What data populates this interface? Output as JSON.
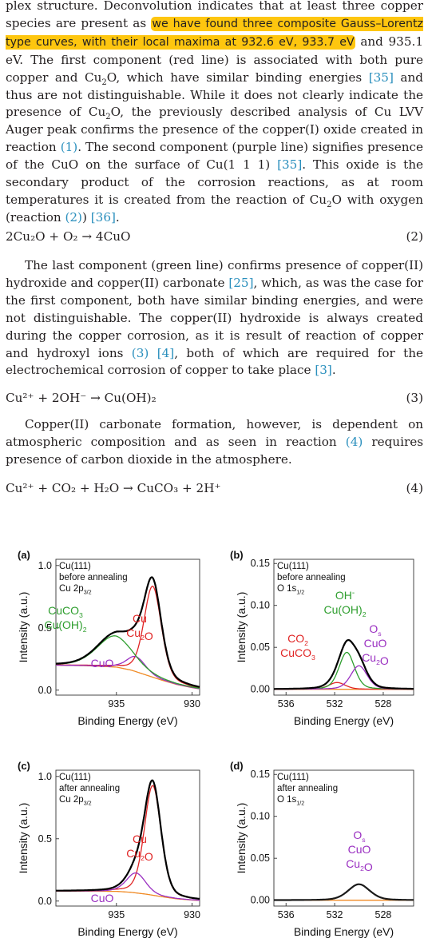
{
  "text": {
    "p1": [
      {
        "t": "plex structure. Deconvolution indicates that at least three copper species are present as "
      },
      {
        "t": "we have found three composite Gauss–Lorentz type curves, with their local maxima at 932.6 eV, 933.7 eV",
        "hl": true
      },
      {
        "t": " and 935.1 eV. The first component (red line) is associated with "
      },
      {
        "t": "both pure copper and Cu"
      },
      {
        "t": "2",
        "sub": true
      },
      {
        "t": "O, which"
      },
      {
        "t": " have similar binding energies "
      },
      {
        "t": "[35]",
        "ref": true
      },
      {
        "t": " and thus are not distinguishable. While it does not clearly indicate the presence of Cu"
      },
      {
        "t": "2",
        "sub": true
      },
      {
        "t": "O, the previously described analysis of Cu LVV Auger peak confirms the presence of the copper(I) oxide created in reaction "
      },
      {
        "t": "(1)",
        "ref": true
      },
      {
        "t": ". The second component (purple line) signifies presence of the CuO on the surface of Cu(1 1 1) "
      },
      {
        "t": "[35]",
        "ref": true
      },
      {
        "t": ". This oxide is the secondary product of the corrosion reactions, as at room temperatures it is created from the reaction of Cu"
      },
      {
        "t": "2",
        "sub": true
      },
      {
        "t": "O with oxygen (reaction "
      },
      {
        "t": "(2)",
        "ref": true
      },
      {
        "t": ") "
      },
      {
        "t": "[36]",
        "ref": true
      },
      {
        "t": "."
      }
    ],
    "eq2": {
      "formula": "2Cu₂O + O₂ → 4CuO",
      "num": "(2)"
    },
    "p2": [
      {
        "t": "The last component (green line) confirms presence of copper(II) hydroxide and copper(II) carbonate "
      },
      {
        "t": "[25]",
        "ref": true
      },
      {
        "t": ", which, as was the case for the first component, both have similar binding energies, and were not distinguishable. The copper(II) hydroxide is always created during the copper corrosion, as it is result of reaction of copper and hydroxyl ions "
      },
      {
        "t": "(3)",
        "ref": true
      },
      {
        "t": " "
      },
      {
        "t": "[4]",
        "ref": true
      },
      {
        "t": ", both of which are required for the electrochemical corrosion of copper to take place "
      },
      {
        "t": "[3]",
        "ref": true
      },
      {
        "t": "."
      }
    ],
    "eq3": {
      "formula": "Cu²⁺ + 2OH⁻ → Cu(OH)₂",
      "num": "(3)"
    },
    "p3": [
      {
        "t": "Copper(II) carbonate formation, however, is dependent on atmospheric composition and as seen in reaction "
      },
      {
        "t": "(4)",
        "ref": true
      },
      {
        "t": " requires presence of carbon dioxide in the atmosphere."
      }
    ],
    "eq4": {
      "formula": "Cu²⁺ + CO₂ + H₂O → CuCO₃ + 2H⁺",
      "num": "(4)"
    }
  },
  "chart_data": [
    {
      "type": "line",
      "panel": "(a)",
      "annotation": [
        "Cu(111)",
        "before annealing",
        "Cu 2p3/2"
      ],
      "xlabel": "Binding Energy (eV)",
      "ylabel": "Intensity (a.u.)",
      "xlim": [
        939,
        929.5
      ],
      "ylim": [
        -0.04,
        1.05
      ],
      "x_reversed": true,
      "xticks": [
        "935",
        "930"
      ],
      "yticks": [
        "0.0",
        "0.5",
        "1.0"
      ],
      "peak_labels": [
        {
          "text": [
            "CuCO3",
            "Cu(OH)2"
          ],
          "color": "#2e9e2e"
        },
        {
          "text": [
            "Cu",
            "Cu2O"
          ],
          "color": "#e02424"
        },
        {
          "text": [
            "CuO"
          ],
          "color": "#9a2fc1"
        }
      ],
      "background": {
        "x": [
          939,
          937,
          935,
          934,
          933,
          932,
          931,
          930,
          929.5
        ],
        "y": [
          0.2,
          0.196,
          0.185,
          0.16,
          0.12,
          0.08,
          0.045,
          0.02,
          0.01
        ]
      },
      "components": [
        {
          "label": "Cu, Cu2O",
          "color": "#e02424",
          "center": 932.6,
          "fwhm": 1.35,
          "height": 0.73
        },
        {
          "label": "CuO",
          "color": "#9a2fc1",
          "center": 933.7,
          "fwhm": 1.5,
          "height": 0.12
        },
        {
          "label": "CuCO3, Cu(OH)2",
          "color": "#2e9e2e",
          "center": 935.1,
          "fwhm": 2.8,
          "height": 0.25
        }
      ],
      "envelope_color": "#000000",
      "background_color": "#f08a24"
    },
    {
      "type": "line",
      "panel": "(b)",
      "annotation": [
        "Cu(111)",
        "before annealing",
        "O 1s1/2"
      ],
      "xlabel": "Binding Energy (eV)",
      "ylabel": "Intensity (a.u.)",
      "xlim": [
        537,
        525.5
      ],
      "ylim": [
        -0.007,
        0.155
      ],
      "x_reversed": true,
      "xticks": [
        "536",
        "532",
        "528"
      ],
      "yticks": [
        "0.00",
        "0.05",
        "0.10",
        "0.15"
      ],
      "peak_labels": [
        {
          "text": [
            "OH-",
            "Cu(OH)2"
          ],
          "color": "#2e9e2e"
        },
        {
          "text": [
            "CO2",
            "CuCO3"
          ],
          "color": "#e02424"
        },
        {
          "text": [
            "Os",
            "CuO",
            "Cu2O"
          ],
          "color": "#9a2fc1"
        }
      ],
      "background": {
        "x": [
          537,
          525.5
        ],
        "y": [
          0.0,
          0.0
        ]
      },
      "components": [
        {
          "label": "CO2, CuCO3",
          "color": "#e02424",
          "center": 531.8,
          "fwhm": 1.6,
          "height": 0.008
        },
        {
          "label": "OH-, Cu(OH)2",
          "color": "#2e9e2e",
          "center": 531.0,
          "fwhm": 1.5,
          "height": 0.044
        },
        {
          "label": "Os, CuO, Cu2O",
          "color": "#9a2fc1",
          "center": 530.0,
          "fwhm": 1.6,
          "height": 0.028
        }
      ],
      "envelope_color": "#000000",
      "background_color": "#f08a24"
    },
    {
      "type": "line",
      "panel": "(c)",
      "annotation": [
        "Cu(111)",
        "after annealing",
        "Cu 2p3/2"
      ],
      "xlabel": "Binding Energy (eV)",
      "ylabel": "Intensity (a.u.)",
      "xlim": [
        939,
        929.5
      ],
      "ylim": [
        -0.04,
        1.05
      ],
      "x_reversed": true,
      "xticks": [
        "935",
        "930"
      ],
      "yticks": [
        "0.0",
        "0.5",
        "1.0"
      ],
      "peak_labels": [
        {
          "text": [
            "Cu",
            "Cu2O"
          ],
          "color": "#e02424"
        },
        {
          "text": [
            "CuO"
          ],
          "color": "#9a2fc1"
        }
      ],
      "background": {
        "x": [
          939,
          935,
          934,
          933,
          932,
          931,
          930,
          929.5
        ],
        "y": [
          0.08,
          0.078,
          0.07,
          0.055,
          0.035,
          0.018,
          0.008,
          0.005
        ]
      },
      "components": [
        {
          "label": "Cu, Cu2O",
          "color": "#e02424",
          "center": 932.6,
          "fwhm": 1.3,
          "height": 0.88
        },
        {
          "label": "CuO",
          "color": "#9a2fc1",
          "center": 933.7,
          "fwhm": 1.5,
          "height": 0.16
        }
      ],
      "envelope_color": "#000000",
      "background_color": "#f08a24"
    },
    {
      "type": "line",
      "panel": "(d)",
      "annotation": [
        "Cu(111)",
        "after annealing",
        "O 1s1/2"
      ],
      "xlabel": "Binding Energy (eV)",
      "ylabel": "Intensity (a.u.)",
      "xlim": [
        537,
        525.5
      ],
      "ylim": [
        -0.007,
        0.155
      ],
      "x_reversed": true,
      "xticks": [
        "536",
        "532",
        "528"
      ],
      "yticks": [
        "0.00",
        "0.05",
        "0.10",
        "0.15"
      ],
      "peak_labels": [
        {
          "text": [
            "Os",
            "CuO",
            "Cu2O"
          ],
          "color": "#9a2fc1"
        }
      ],
      "background": {
        "x": [
          537,
          525.5
        ],
        "y": [
          0.0,
          0.0
        ]
      },
      "components": [
        {
          "label": "Os, CuO, Cu2O",
          "color": "#9a2fc1",
          "center": 530.0,
          "fwhm": 2.1,
          "height": 0.019
        }
      ],
      "envelope_color": "#1a1a1a",
      "background_color": "#f08a24"
    }
  ]
}
